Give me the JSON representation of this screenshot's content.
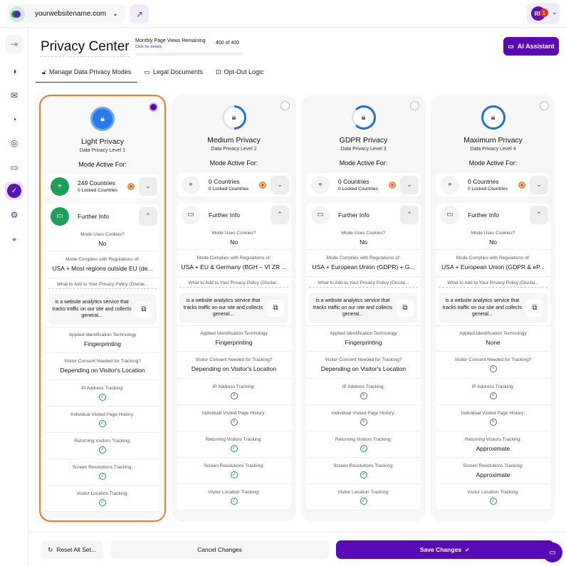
{
  "topbar": {
    "site": "yourwebsitename.com",
    "user_initials": "RF",
    "notification_count": "1"
  },
  "header": {
    "title": "Privacy Center",
    "page_views_label": "Monthly Page Views Remaining",
    "page_views_link": "Click for details",
    "page_views_value": "400 of 400",
    "ai_button": "AI Assistant"
  },
  "tabs": [
    {
      "label": "Manage Data Privacy Modes",
      "icon": "lock-icon"
    },
    {
      "label": "Legal Documents",
      "icon": "folder-icon"
    },
    {
      "label": "Opt-Out Logic",
      "icon": "exit-icon"
    }
  ],
  "labels": {
    "mode_active": "Mode Active For:",
    "further_info": "Further Info",
    "cookies": "Mode Uses Cookies?",
    "regulations": "Mode Complies with Regulations of:",
    "policy": "What to Add to Your Privacy Policy (Disclai...",
    "disclaimer": "is a website analytics service that tracks traffic on our site and collects general...",
    "identification": "Applied Identification Technology",
    "consent": "Visitor Consent Needed for Tracking?",
    "ip": "IP Address Tracking:",
    "history": "Individual Visited Page History:",
    "returning": "Returning Visitors Tracking:",
    "screen": "Screen Resolutions Tracking:",
    "location": "Visitor Location Tracking:"
  },
  "cards": [
    {
      "title": "Light Privacy",
      "level": "Data Privacy Level 1",
      "selected": true,
      "countries": "249 Countries",
      "locked": "0 Locked Countries",
      "cookies": "No",
      "regulations": "USA + Most regions outside EU (de...",
      "identification": "Fingerprinting",
      "consent": "Depending on Visitor's Location",
      "ip": "check",
      "history": "check",
      "returning": "check",
      "screen": "check",
      "location": "check"
    },
    {
      "title": "Medium Privacy",
      "level": "Data Privacy Level 2",
      "selected": false,
      "countries": "0 Countries",
      "locked": "0 Locked Countries",
      "cookies": "No",
      "regulations": "USA + EU & Germany (BGH – VI ZR ...",
      "identification": "Fingerprinting",
      "consent": "Depending on Visitor's Location",
      "ip": "x",
      "history": "x",
      "returning": "check",
      "screen": "check",
      "location": "check"
    },
    {
      "title": "GDPR Privacy",
      "level": "Data Privacy Level 3",
      "selected": false,
      "countries": "0 Countries",
      "locked": "0 Locked Countries",
      "cookies": "No",
      "regulations": "USA + European Union (GDPR) + G...",
      "identification": "Fingerprinting",
      "consent": "Depending on Visitor's Location",
      "ip": "x",
      "history": "x",
      "returning": "check",
      "screen": "check",
      "location": "check"
    },
    {
      "title": "Maximum Privacy",
      "level": "Data Privacy Level 4",
      "selected": false,
      "countries": "0 Countries",
      "locked": "0 Locked Countries",
      "cookies": "No",
      "regulations": "USA + European Union (GDPR & eP...",
      "identification": "None",
      "consent": "x",
      "ip": "x",
      "history": "x",
      "returning": "Approximate",
      "screen": "Approximate",
      "location": "check"
    }
  ],
  "footer": {
    "reset": "Reset All Set...",
    "cancel": "Cancel Changes",
    "save": "Save Changes"
  },
  "colors": {
    "accent": "#5a0ab4",
    "selected_border": "#f07a26",
    "active_green": "#1aa05a"
  }
}
